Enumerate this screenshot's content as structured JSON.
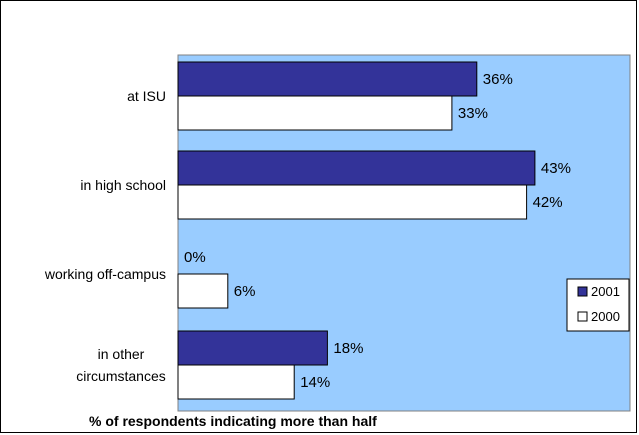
{
  "chart_data": {
    "type": "bar",
    "orientation": "horizontal",
    "categories": [
      [
        "at ISU"
      ],
      [
        "in high school"
      ],
      [
        "working off-campus"
      ],
      [
        "in other",
        "circumstances"
      ]
    ],
    "series": [
      {
        "name": "2001",
        "values": [
          36,
          43,
          0,
          18
        ],
        "labels": [
          "36%",
          "43%",
          "0%",
          "18%"
        ]
      },
      {
        "name": "2000",
        "values": [
          33,
          42,
          6,
          14
        ],
        "labels": [
          "33%",
          "42%",
          "6%",
          "14%"
        ]
      }
    ],
    "xlabel": "% of respondents indicating more than half",
    "legend_position": "right",
    "grid": false,
    "colors": {
      "plot_bg": "#99ccff",
      "series_2001": "#333399",
      "series_2000": "#ffffff",
      "outline": "#000000"
    }
  }
}
